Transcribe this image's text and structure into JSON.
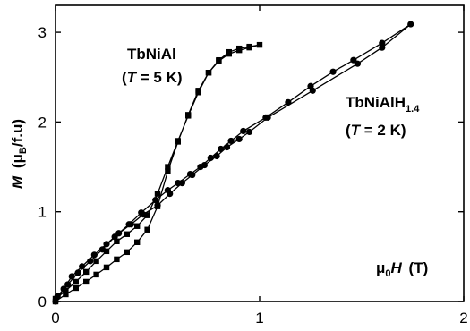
{
  "chart_data": {
    "type": "line",
    "xlabel_parts": {
      "mu": "μ",
      "sub": "0",
      "var": "H",
      "unit": "(T)"
    },
    "ylabel_parts": {
      "var": "M",
      "open": "(μ",
      "sub": "B",
      "unit": "/f.u)"
    },
    "xlim": [
      0,
      2
    ],
    "ylim": [
      0,
      3.3
    ],
    "x_ticks": [
      0,
      1,
      2
    ],
    "y_ticks": [
      0,
      1,
      2,
      3
    ],
    "grid": false,
    "annotations": [
      {
        "id": "tbnial",
        "line1": "TbNiAl",
        "line2_open": "(",
        "line2_var": "T",
        "line2_rest": " = 5 K)"
      },
      {
        "id": "tbnialh",
        "line1": "TbNiAlH",
        "line1_sub": "1.4",
        "line2_open": "(",
        "line2_var": "T",
        "line2_rest": " = 2 K)"
      }
    ],
    "series": [
      {
        "marker": "square",
        "points": [
          [
            0.0,
            0.0
          ],
          [
            0.05,
            0.08
          ],
          [
            0.1,
            0.15
          ],
          [
            0.15,
            0.22
          ],
          [
            0.2,
            0.3
          ],
          [
            0.25,
            0.38
          ],
          [
            0.3,
            0.47
          ],
          [
            0.35,
            0.55
          ],
          [
            0.4,
            0.66
          ],
          [
            0.45,
            0.8
          ],
          [
            0.5,
            1.06
          ],
          [
            0.55,
            1.45
          ],
          [
            0.6,
            1.78
          ],
          [
            0.65,
            2.08
          ],
          [
            0.7,
            2.35
          ],
          [
            0.75,
            2.55
          ],
          [
            0.8,
            2.68
          ],
          [
            0.85,
            2.76
          ],
          [
            0.9,
            2.8
          ],
          [
            0.95,
            2.83
          ],
          [
            1.0,
            2.86
          ],
          [
            0.95,
            2.84
          ],
          [
            0.9,
            2.82
          ],
          [
            0.85,
            2.78
          ],
          [
            0.8,
            2.69
          ],
          [
            0.75,
            2.55
          ],
          [
            0.7,
            2.33
          ],
          [
            0.65,
            2.07
          ],
          [
            0.6,
            1.79
          ],
          [
            0.55,
            1.5
          ],
          [
            0.5,
            1.2
          ],
          [
            0.45,
            0.96
          ],
          [
            0.4,
            0.84
          ],
          [
            0.35,
            0.75
          ],
          [
            0.3,
            0.67
          ],
          [
            0.25,
            0.56
          ],
          [
            0.2,
            0.45
          ],
          [
            0.15,
            0.33
          ],
          [
            0.1,
            0.22
          ],
          [
            0.05,
            0.12
          ],
          [
            0.0,
            0.03
          ]
        ]
      },
      {
        "marker": "circle",
        "points": [
          [
            0.0,
            0.0
          ],
          [
            0.04,
            0.14
          ],
          [
            0.08,
            0.28
          ],
          [
            0.13,
            0.39
          ],
          [
            0.19,
            0.52
          ],
          [
            0.25,
            0.64
          ],
          [
            0.31,
            0.76
          ],
          [
            0.37,
            0.86
          ],
          [
            0.43,
            0.97
          ],
          [
            0.5,
            1.07
          ],
          [
            0.56,
            1.2
          ],
          [
            0.62,
            1.32
          ],
          [
            0.67,
            1.41
          ],
          [
            0.73,
            1.52
          ],
          [
            0.79,
            1.62
          ],
          [
            0.84,
            1.72
          ],
          [
            0.9,
            1.81
          ],
          [
            0.95,
            1.89
          ],
          [
            1.04,
            2.05
          ],
          [
            1.26,
            2.35
          ],
          [
            1.48,
            2.65
          ],
          [
            1.6,
            2.83
          ],
          [
            1.74,
            3.09
          ],
          [
            1.6,
            2.88
          ],
          [
            1.46,
            2.69
          ],
          [
            1.36,
            2.56
          ],
          [
            1.25,
            2.4
          ],
          [
            1.14,
            2.22
          ],
          [
            1.03,
            2.05
          ],
          [
            0.92,
            1.9
          ],
          [
            0.86,
            1.79
          ],
          [
            0.81,
            1.7
          ],
          [
            0.76,
            1.6
          ],
          [
            0.71,
            1.5
          ],
          [
            0.66,
            1.42
          ],
          [
            0.6,
            1.32
          ],
          [
            0.55,
            1.24
          ],
          [
            0.49,
            1.13
          ],
          [
            0.42,
            0.99
          ],
          [
            0.36,
            0.86
          ],
          [
            0.29,
            0.72
          ],
          [
            0.23,
            0.58
          ],
          [
            0.17,
            0.45
          ],
          [
            0.11,
            0.32
          ],
          [
            0.06,
            0.19
          ],
          [
            0.01,
            0.06
          ]
        ]
      }
    ]
  }
}
